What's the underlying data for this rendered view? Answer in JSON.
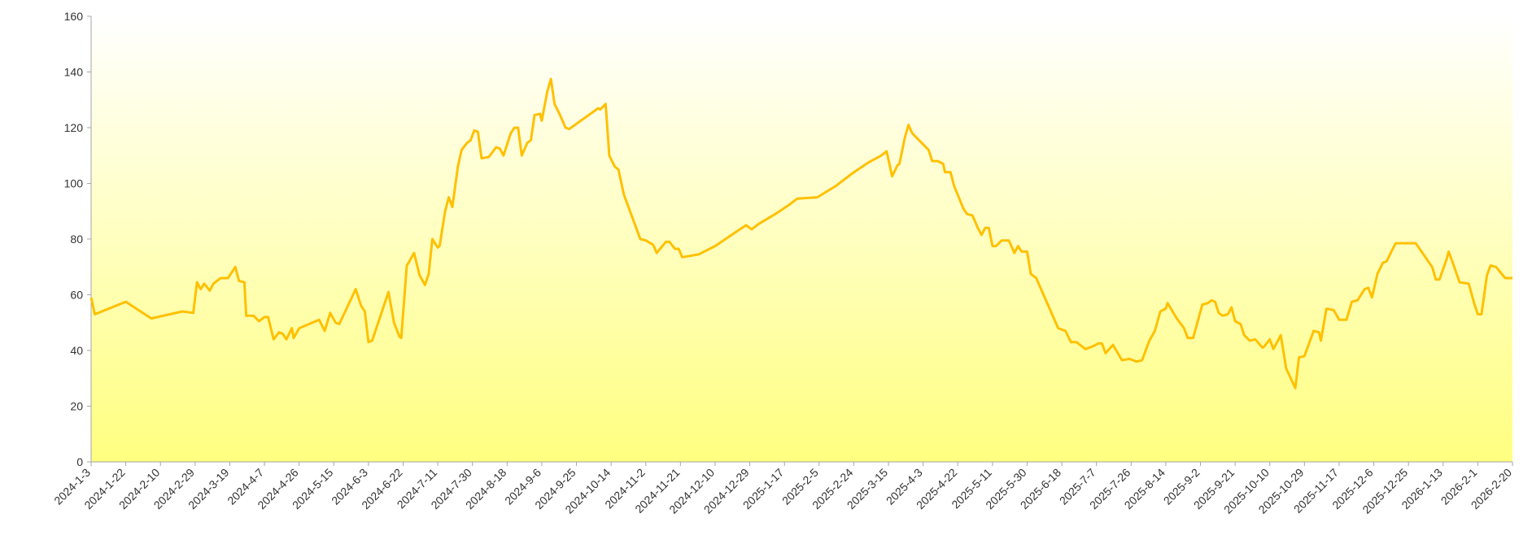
{
  "chart_data": {
    "type": "line",
    "x": [
      "2024-1-3",
      "2024-1-5",
      "2024-1-22",
      "2024-2-5",
      "2024-2-22",
      "2024-2-28",
      "2024-3-1",
      "2024-3-3",
      "2024-3-5",
      "2024-3-8",
      "2024-3-10",
      "2024-3-14",
      "2024-3-18",
      "2024-3-22",
      "2024-3-24",
      "2024-3-27",
      "2024-3-28",
      "2024-4-1",
      "2024-4-4",
      "2024-4-7",
      "2024-4-9",
      "2024-4-12",
      "2024-4-15",
      "2024-4-17",
      "2024-4-19",
      "2024-4-22",
      "2024-4-23",
      "2024-4-26",
      "2024-5-7",
      "2024-5-10",
      "2024-5-13",
      "2024-5-16",
      "2024-5-18",
      "2024-5-27",
      "2024-5-30",
      "2024-6-1",
      "2024-6-3",
      "2024-6-5",
      "2024-6-14",
      "2024-6-17",
      "2024-6-20",
      "2024-6-21",
      "2024-6-24",
      "2024-6-25",
      "2024-6-28",
      "2024-7-1",
      "2024-7-4",
      "2024-7-6",
      "2024-7-8",
      "2024-7-11",
      "2024-7-12",
      "2024-7-15",
      "2024-7-17",
      "2024-7-19",
      "2024-7-22",
      "2024-7-24",
      "2024-7-27",
      "2024-7-29",
      "2024-7-31",
      "2024-8-2",
      "2024-8-4",
      "2024-8-8",
      "2024-8-12",
      "2024-8-14",
      "2024-8-16",
      "2024-8-20",
      "2024-8-22",
      "2024-8-24",
      "2024-8-26",
      "2024-8-29",
      "2024-8-31",
      "2024-9-2",
      "2024-9-5",
      "2024-9-6",
      "2024-9-9",
      "2024-9-11",
      "2024-9-13",
      "2024-9-16",
      "2024-9-19",
      "2024-9-21",
      "2024-10-7",
      "2024-10-8",
      "2024-10-11",
      "2024-10-13",
      "2024-10-16",
      "2024-10-18",
      "2024-10-21",
      "2024-10-30",
      "2024-11-2",
      "2024-11-6",
      "2024-11-8",
      "2024-11-13",
      "2024-11-15",
      "2024-11-18",
      "2024-11-20",
      "2024-11-22",
      "2024-12-1",
      "2024-12-10",
      "2024-12-19",
      "2024-12-27",
      "2024-12-30",
      "2025-1-3",
      "2025-1-12",
      "2025-1-20",
      "2025-1-24",
      "2025-2-4",
      "2025-2-14",
      "2025-2-23",
      "2025-3-4",
      "2025-3-11",
      "2025-3-14",
      "2025-3-17",
      "2025-3-20",
      "2025-3-21",
      "2025-3-24",
      "2025-3-26",
      "2025-3-28",
      "2025-4-6",
      "2025-4-8",
      "2025-4-11",
      "2025-4-14",
      "2025-4-15",
      "2025-4-18",
      "2025-4-20",
      "2025-4-25",
      "2025-4-27",
      "2025-4-30",
      "2025-5-3",
      "2025-5-5",
      "2025-5-7",
      "2025-5-9",
      "2025-5-11",
      "2025-5-13",
      "2025-5-16",
      "2025-5-20",
      "2025-5-23",
      "2025-5-25",
      "2025-5-27",
      "2025-5-30",
      "2025-6-1",
      "2025-6-4",
      "2025-6-8",
      "2025-6-16",
      "2025-6-20",
      "2025-6-23",
      "2025-6-26",
      "2025-7-1",
      "2025-7-5",
      "2025-7-8",
      "2025-7-10",
      "2025-7-12",
      "2025-7-16",
      "2025-7-21",
      "2025-7-25",
      "2025-7-29",
      "2025-8-1",
      "2025-8-5",
      "2025-8-8",
      "2025-8-11",
      "2025-8-14",
      "2025-8-15",
      "2025-8-20",
      "2025-8-24",
      "2025-8-26",
      "2025-8-29",
      "2025-9-3",
      "2025-9-6",
      "2025-9-8",
      "2025-9-10",
      "2025-9-12",
      "2025-9-14",
      "2025-9-17",
      "2025-9-19",
      "2025-9-21",
      "2025-9-24",
      "2025-9-26",
      "2025-9-29",
      "2025-10-2",
      "2025-10-6",
      "2025-10-7",
      "2025-10-10",
      "2025-10-12",
      "2025-10-16",
      "2025-10-19",
      "2025-10-24",
      "2025-10-26",
      "2025-10-29",
      "2025-11-3",
      "2025-11-6",
      "2025-11-7",
      "2025-11-10",
      "2025-11-14",
      "2025-11-17",
      "2025-11-21",
      "2025-11-24",
      "2025-11-27",
      "2025-12-1",
      "2025-12-3",
      "2025-12-5",
      "2025-12-8",
      "2025-12-11",
      "2025-12-13",
      "2025-12-16",
      "2025-12-18",
      "2025-12-27",
      "2025-12-29",
      "2026-1-7",
      "2026-1-9",
      "2026-1-11",
      "2026-1-15",
      "2026-1-16",
      "2026-1-18",
      "2026-1-22",
      "2026-1-27",
      "2026-1-30",
      "2026-2-1",
      "2026-2-3",
      "2026-2-6",
      "2026-2-8",
      "2026-2-11",
      "2026-2-16",
      "2026-2-20"
    ],
    "values": [
      59,
      53,
      57.5,
      51.5,
      54,
      53.5,
      64.5,
      62,
      64,
      61.5,
      64,
      66,
      66,
      70,
      65,
      64.5,
      52.5,
      52.5,
      50.5,
      52,
      52,
      44,
      46.5,
      46,
      44,
      48,
      44.5,
      48,
      51,
      47,
      53.5,
      50,
      49.5,
      62,
      56,
      54,
      43,
      43.5,
      61,
      50,
      45,
      44.5,
      70.5,
      71.5,
      75,
      67,
      63.5,
      67.5,
      80,
      77,
      77.5,
      90,
      95,
      91.5,
      106,
      112,
      114.5,
      115.5,
      119,
      118.5,
      109,
      109.5,
      113,
      112.5,
      110,
      118,
      120,
      120,
      110,
      114.5,
      115.5,
      124.5,
      125,
      122.5,
      133,
      137.5,
      128.5,
      124.5,
      120,
      119.5,
      127,
      126.5,
      128.5,
      110,
      106,
      105,
      96,
      80,
      79.5,
      78,
      75,
      79,
      79,
      76.5,
      76.5,
      73.5,
      74.5,
      77.5,
      81.5,
      85,
      83.5,
      85.5,
      89,
      92.5,
      94.5,
      95,
      99,
      103.5,
      107.5,
      110,
      111.5,
      102.5,
      106.5,
      107,
      116.5,
      121,
      118,
      112,
      108,
      108,
      107,
      104,
      104,
      99,
      91,
      89,
      88.5,
      84,
      81.5,
      84,
      84,
      77.5,
      77.5,
      79.5,
      79.5,
      75,
      77.5,
      75.5,
      75.5,
      67.5,
      66,
      60,
      48,
      47,
      43,
      43,
      40.5,
      41.5,
      42.5,
      42.5,
      39,
      42,
      36.5,
      37,
      36,
      36.5,
      43.5,
      47,
      54,
      55,
      57,
      51.5,
      48,
      44.5,
      44.5,
      56.5,
      57,
      58,
      57.5,
      53.5,
      52.5,
      53,
      55.5,
      50.5,
      49.5,
      45.5,
      43.5,
      44,
      41,
      41.5,
      44,
      40.5,
      45.5,
      33.5,
      26.5,
      37.5,
      38,
      47,
      46.5,
      43.5,
      55,
      54.5,
      51,
      51,
      57.5,
      58,
      62,
      62.5,
      59,
      67.5,
      71.5,
      72,
      76,
      78.5,
      78.5,
      78.5,
      70,
      65.5,
      65.5,
      73,
      75.5,
      72,
      64.5,
      64,
      57,
      53,
      53,
      67,
      70.5,
      70,
      66,
      66
    ],
    "color": "#ffc000",
    "xlim": [
      "2024-1-3",
      "2026-2-20"
    ],
    "xticks": [
      "2024-1-3",
      "2024-1-22",
      "2024-2-10",
      "2024-2-29",
      "2024-3-19",
      "2024-4-7",
      "2024-4-26",
      "2024-5-15",
      "2024-6-3",
      "2024-6-22",
      "2024-7-11",
      "2024-7-30",
      "2024-8-18",
      "2024-9-6",
      "2024-9-25",
      "2024-10-14",
      "2024-11-2",
      "2024-11-21",
      "2024-12-10",
      "2024-12-29",
      "2025-1-17",
      "2025-2-5",
      "2025-2-24",
      "2025-3-15",
      "2025-4-3",
      "2025-4-22",
      "2025-5-11",
      "2025-5-30",
      "2025-6-18",
      "2025-7-7",
      "2025-7-26",
      "2025-8-14",
      "2025-9-2",
      "2025-9-21",
      "2025-10-10",
      "2025-10-29",
      "2025-11-17",
      "2025-12-6",
      "2025-12-25",
      "2026-1-13",
      "2026-2-1",
      "2026-2-20"
    ],
    "ylim": [
      0,
      160
    ],
    "yticks": [
      0,
      20,
      40,
      60,
      80,
      100,
      120,
      140,
      160
    ],
    "grid": false
  }
}
